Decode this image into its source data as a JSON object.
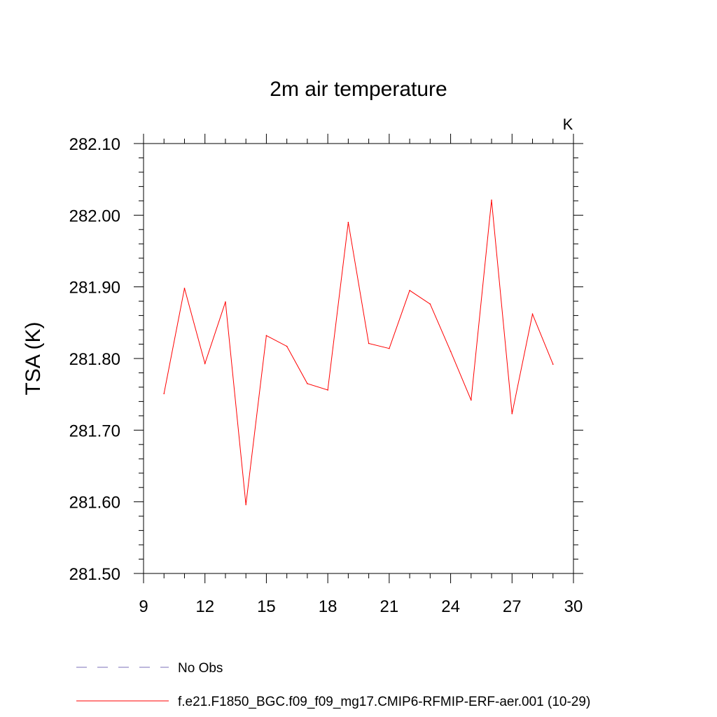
{
  "chart_data": {
    "type": "line",
    "title": "2m air temperature",
    "units_label": "K",
    "ylabel": "TSA  (K)",
    "xlabel": "",
    "xlim": [
      9,
      30
    ],
    "ylim": [
      281.5,
      282.1
    ],
    "x_ticks": [
      9,
      12,
      15,
      18,
      21,
      24,
      27,
      30
    ],
    "y_ticks": [
      "281.50",
      "281.60",
      "281.70",
      "281.80",
      "281.90",
      "282.00",
      "282.10"
    ],
    "grid": false,
    "legend_position": "bottom",
    "series": [
      {
        "name": "No Obs",
        "color": "#7b6fb8",
        "dash": "dashed",
        "x": [],
        "y": []
      },
      {
        "name": "f.e21.F1850_BGC.f09_f09_mg17.CMIP6-RFMIP-ERF-aer.001 (10-29)",
        "color": "#ff0000",
        "dash": "solid",
        "x": [
          10,
          11,
          12,
          13,
          14,
          15,
          16,
          17,
          18,
          19,
          20,
          21,
          22,
          23,
          24,
          25,
          26,
          27,
          28,
          29
        ],
        "y": [
          281.751,
          281.898,
          281.793,
          281.879,
          281.596,
          281.832,
          281.817,
          281.765,
          281.756,
          281.99,
          281.821,
          281.814,
          281.895,
          281.876,
          281.81,
          281.742,
          282.021,
          281.723,
          281.862,
          281.792
        ]
      }
    ]
  }
}
